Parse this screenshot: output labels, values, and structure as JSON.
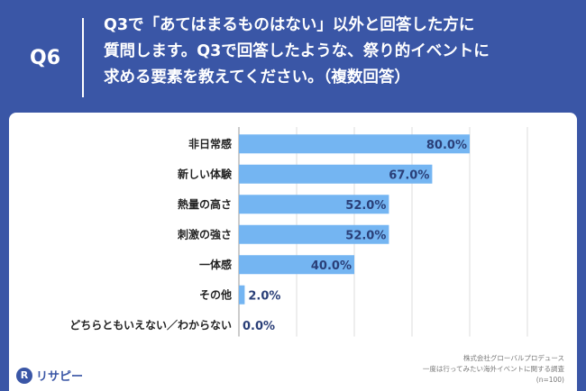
{
  "header": {
    "tag": "Q6",
    "question": "Q3で「あてはまるものはない」以外と回答した方に\n質問します。Q3で回答したような、祭り的イベントに\n求める要素を教えてください。（複数回答）"
  },
  "chart_data": {
    "type": "bar",
    "orientation": "horizontal",
    "categories": [
      "非日常感",
      "新しい体験",
      "熱量の高さ",
      "刺激の強さ",
      "一体感",
      "その他",
      "どちらともいえない／わからない"
    ],
    "values": [
      80.0,
      67.0,
      52.0,
      52.0,
      40.0,
      2.0,
      0.0
    ],
    "value_labels": [
      "80.0%",
      "67.0%",
      "52.0%",
      "52.0%",
      "40.0%",
      "2.0%",
      "0.0%"
    ],
    "xlim": [
      0,
      100
    ],
    "grid": true,
    "bar_color": "#74b5f2"
  },
  "source": {
    "company": "株式会社グローバルプロデュース",
    "survey": "一度は行ってみたい海外イベントに関する調査",
    "n": "(n=100)"
  },
  "logo": {
    "mark": "R",
    "text": "リサピー"
  },
  "colors": {
    "background": "#3a56a6",
    "bar": "#74b5f2",
    "value_text": "#2a3f78"
  }
}
